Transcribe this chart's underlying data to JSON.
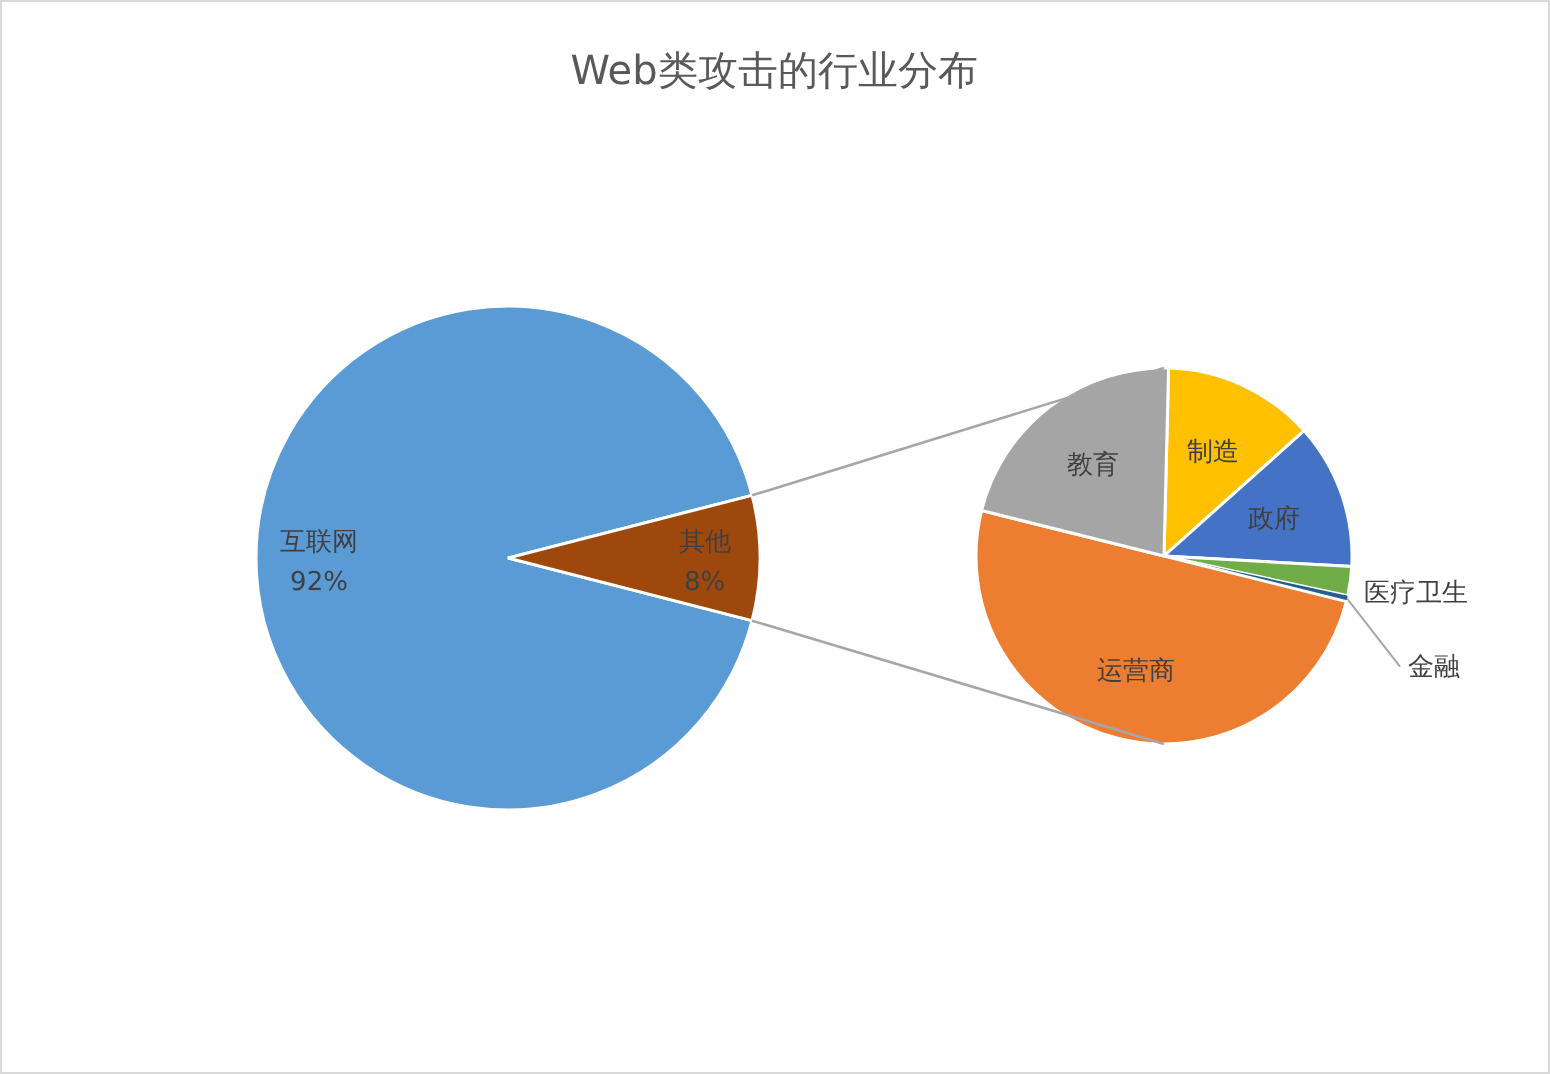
{
  "chart_data": [
    {
      "type": "pie",
      "title": "Web类攻击的行业分布",
      "categories": [
        "互联网",
        "其他"
      ],
      "values": [
        92,
        8
      ],
      "colors": [
        "#5b9bd5",
        "#9e480e"
      ],
      "value_labels": [
        "92%",
        "8%"
      ]
    },
    {
      "type": "pie",
      "categories": [
        "制造",
        "政府",
        "医疗卫生",
        "金融",
        "运营商",
        "教育"
      ],
      "values": [
        13,
        12.5,
        2.5,
        0.5,
        50,
        21.5
      ],
      "colors": [
        "#ffc000",
        "#4472c4",
        "#70ad47",
        "#255e91",
        "#ed7d31",
        "#a5a5a5"
      ]
    }
  ]
}
